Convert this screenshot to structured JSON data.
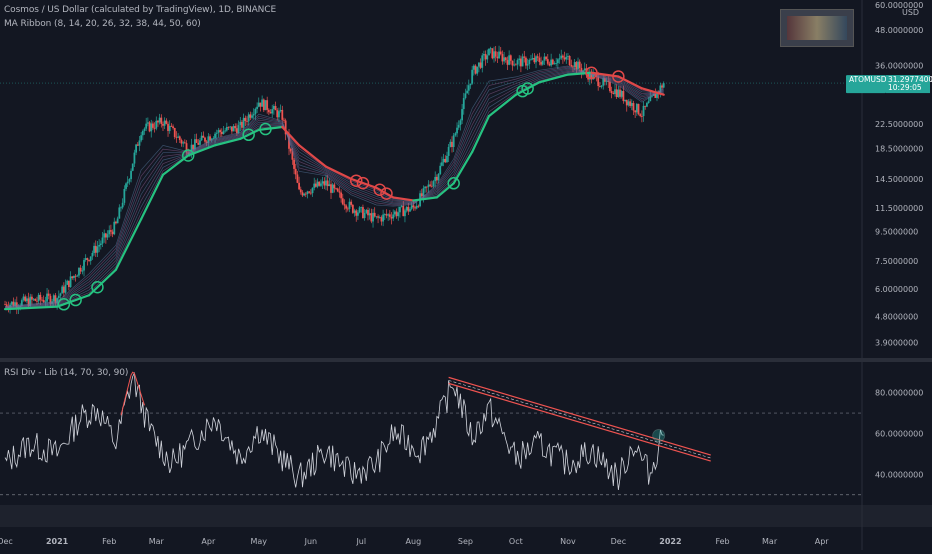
{
  "header": {
    "title": "Cosmos / US Dollar (calculated by TradingView), 1D, BINANCE",
    "ribbon_study": "MA Ribbon (8, 14, 20, 26, 32, 38, 44, 50, 60)",
    "rsi_study": "RSI Div - Lib (14, 70, 30, 90)"
  },
  "price_axis": {
    "currency": "USD",
    "top_label": "60.0000000",
    "labels": [
      "48.0000000",
      "36.0000000",
      "22.5000000",
      "18.5000000",
      "14.5000000",
      "11.5000000",
      "9.5000000",
      "7.5000000",
      "6.0000000",
      "4.8000000",
      "3.9000000"
    ],
    "current_price": "31.2977400",
    "countdown": "10:29:05",
    "symbol": "ATOMUSD"
  },
  "rsi_axis": {
    "labels": [
      "80.0000000",
      "60.0000000",
      "40.0000000"
    ]
  },
  "time_axis": {
    "labels": [
      "Dec",
      "2021",
      "Feb",
      "Mar",
      "Apr",
      "May",
      "Jun",
      "Jul",
      "Aug",
      "Sep",
      "Oct",
      "Nov",
      "Dec",
      "2022",
      "Feb",
      "Mar",
      "Apr"
    ]
  },
  "colors": {
    "background": "#131722",
    "bull": "#26a69a",
    "bear": "#ef5350",
    "ribbon_green": "#26c281",
    "ribbon_red": "#e04848",
    "price_tag": "#26a69a",
    "rsi_line": "#d1d4dc",
    "trendline": "#ef5350"
  },
  "watermark": {
    "icon": "author-logo-image"
  },
  "chart_data": [
    {
      "type": "candlestick",
      "title": "Cosmos / US Dollar (calculated by TradingView), 1D, BINANCE",
      "y_scale": "log",
      "ylim": [
        3.5,
        60
      ],
      "x": [
        "2020-12-01",
        "2021-01-01",
        "2021-01-20",
        "2021-02-05",
        "2021-02-20",
        "2021-03-05",
        "2021-03-20",
        "2021-04-05",
        "2021-04-20",
        "2021-05-01",
        "2021-05-15",
        "2021-05-25",
        "2021-06-10",
        "2021-06-25",
        "2021-07-10",
        "2021-07-20",
        "2021-08-01",
        "2021-08-15",
        "2021-08-25",
        "2021-09-05",
        "2021-09-15",
        "2021-10-01",
        "2021-10-15",
        "2021-11-01",
        "2021-11-15",
        "2021-12-01",
        "2021-12-15",
        "2021-12-28"
      ],
      "close": [
        5.3,
        5.6,
        7.8,
        10.0,
        21.5,
        23.0,
        18.5,
        21.0,
        22.0,
        27.0,
        24.0,
        13.0,
        14.0,
        11.5,
        10.5,
        11.0,
        11.5,
        15.0,
        20.0,
        34.0,
        40.0,
        37.0,
        37.5,
        38.0,
        33.0,
        29.0,
        24.5,
        31.3
      ],
      "ma_ribbon_periods": [
        8,
        14,
        20,
        26,
        32,
        38,
        44,
        50,
        60
      ],
      "ma60": [
        5.1,
        5.2,
        5.7,
        7.0,
        10.5,
        15.0,
        17.5,
        19.0,
        20.0,
        21.5,
        22.0,
        19.0,
        16.0,
        14.5,
        13.5,
        12.5,
        12.2,
        12.5,
        14.0,
        18.0,
        24.0,
        28.5,
        31.5,
        33.5,
        34.0,
        33.0,
        30.0,
        28.5
      ],
      "cross_markers_bull": [
        "2021-01-05",
        "2021-01-12",
        "2021-01-25",
        "2021-03-20",
        "2021-04-25",
        "2021-05-05",
        "2021-08-25",
        "2021-10-05",
        "2021-10-08"
      ],
      "cross_markers_bear": [
        "2021-06-28",
        "2021-07-02",
        "2021-07-12",
        "2021-07-16",
        "2021-11-15",
        "2021-12-01"
      ]
    },
    {
      "type": "line",
      "title": "RSI Div - Lib (14, 70, 30, 90)",
      "ylim": [
        25,
        95
      ],
      "levels": [
        70,
        30
      ],
      "series": [
        {
          "name": "RSI",
          "x": [
            "2020-12-01",
            "2020-12-15",
            "2021-01-01",
            "2021-01-15",
            "2021-01-25",
            "2021-02-05",
            "2021-02-15",
            "2021-02-25",
            "2021-03-10",
            "2021-03-25",
            "2021-04-05",
            "2021-04-20",
            "2021-05-01",
            "2021-05-15",
            "2021-05-25",
            "2021-06-10",
            "2021-06-25",
            "2021-07-10",
            "2021-07-20",
            "2021-08-05",
            "2021-08-15",
            "2021-08-25",
            "2021-09-05",
            "2021-09-15",
            "2021-10-01",
            "2021-10-15",
            "2021-11-01",
            "2021-11-15",
            "2021-12-01",
            "2021-12-10",
            "2021-12-20",
            "2021-12-28"
          ],
          "values": [
            45,
            55,
            50,
            68,
            72,
            55,
            88,
            62,
            45,
            58,
            68,
            48,
            62,
            48,
            38,
            52,
            40,
            45,
            60,
            52,
            65,
            85,
            58,
            72,
            48,
            55,
            45,
            52,
            38,
            55,
            40,
            63
          ]
        }
      ],
      "trendline": {
        "from": {
          "x": "2021-08-22",
          "y": 86
        },
        "to": {
          "x": "2022-01-25",
          "y": 48
        }
      }
    }
  ]
}
